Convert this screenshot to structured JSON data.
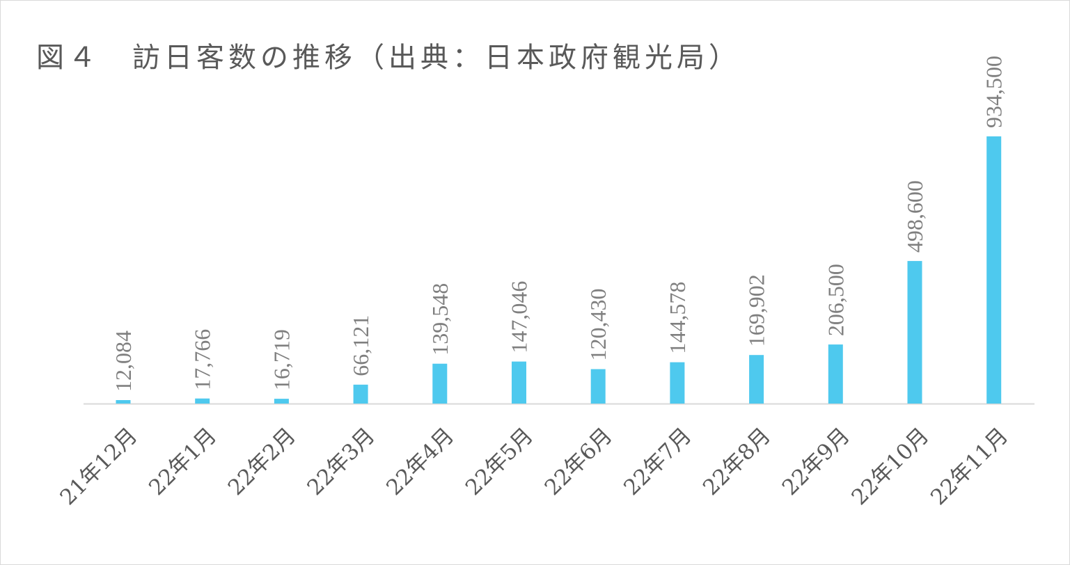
{
  "chart_data": {
    "type": "bar",
    "title": "図４　訪日客数の推移（出典：日本政府観光局）",
    "categories": [
      "21年12月",
      "22年1月",
      "22年2月",
      "22年3月",
      "22年4月",
      "22年5月",
      "22年6月",
      "22年7月",
      "22年8月",
      "22年9月",
      "22年10月",
      "22年11月"
    ],
    "values": [
      12084,
      17766,
      16719,
      66121,
      139548,
      147046,
      120430,
      144578,
      169902,
      206500,
      498600,
      934500
    ],
    "value_labels": [
      "12,084",
      "17,766",
      "16,719",
      "66,121",
      "139,548",
      "147,046",
      "120,430",
      "144,578",
      "169,902",
      "206,500",
      "498,600",
      "934,500"
    ],
    "xlabel": "",
    "ylabel": "",
    "ylim": [
      0,
      934500
    ],
    "grid": false,
    "legend": "none",
    "bar_color": "#4EC9EE",
    "axis_color": "#d9d9d9"
  }
}
